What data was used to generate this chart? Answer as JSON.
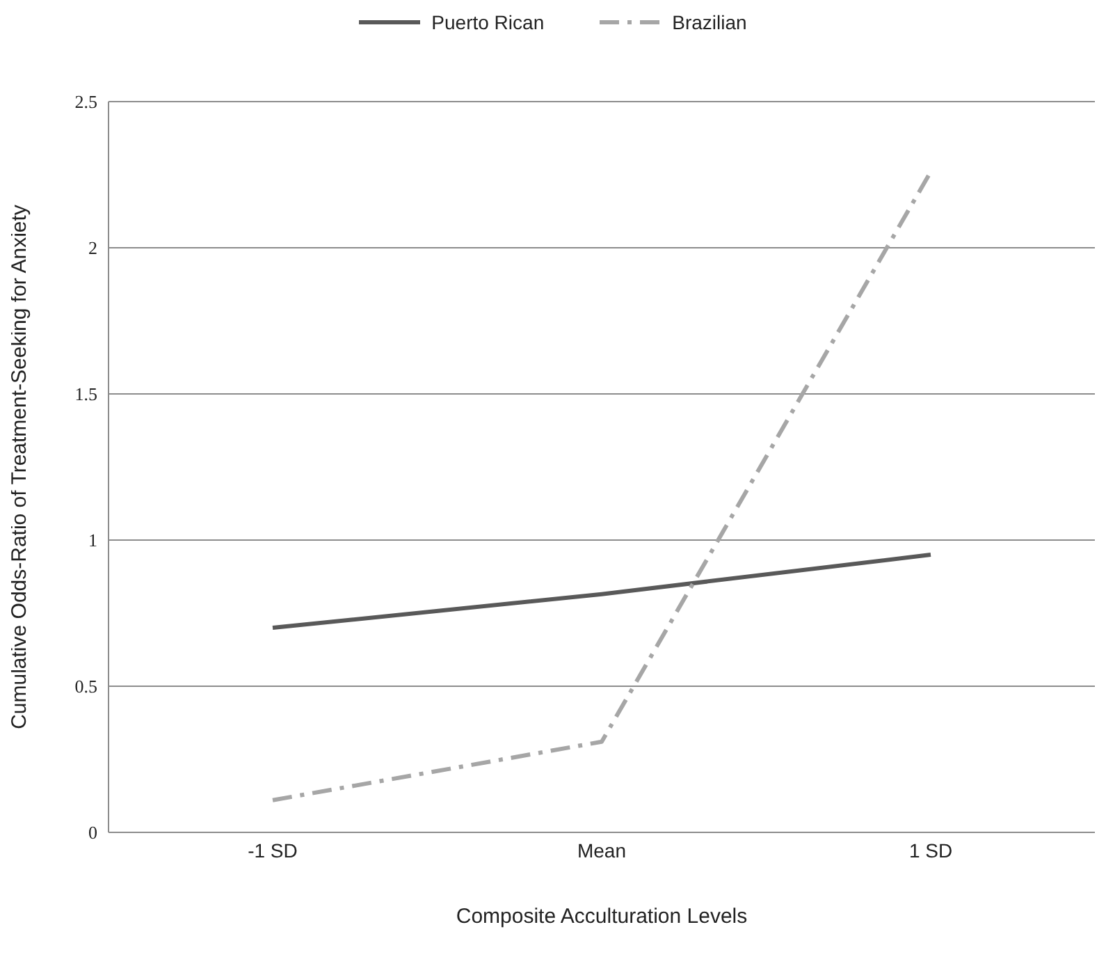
{
  "chart_data": {
    "type": "line",
    "xlabel": "Composite Acculturation Levels",
    "ylabel": "Cumulative Odds-Ratio of Treatment-Seeking for Anxiety",
    "categories": [
      "-1 SD",
      "Mean",
      "1 SD"
    ],
    "series": [
      {
        "name": "Puerto Rican",
        "color": "#595959",
        "values": [
          0.7,
          0.815,
          0.95
        ],
        "line_style": "solid"
      },
      {
        "name": "Brazilian",
        "color": "#a6a6a6",
        "values": [
          0.11,
          0.31,
          2.26
        ],
        "line_style": "dashdot"
      }
    ],
    "ylim": [
      0,
      2.5
    ],
    "yticks": [
      0,
      0.5,
      1,
      1.5,
      2,
      2.5
    ],
    "grid": "y",
    "legend": "top",
    "marker": "none"
  }
}
